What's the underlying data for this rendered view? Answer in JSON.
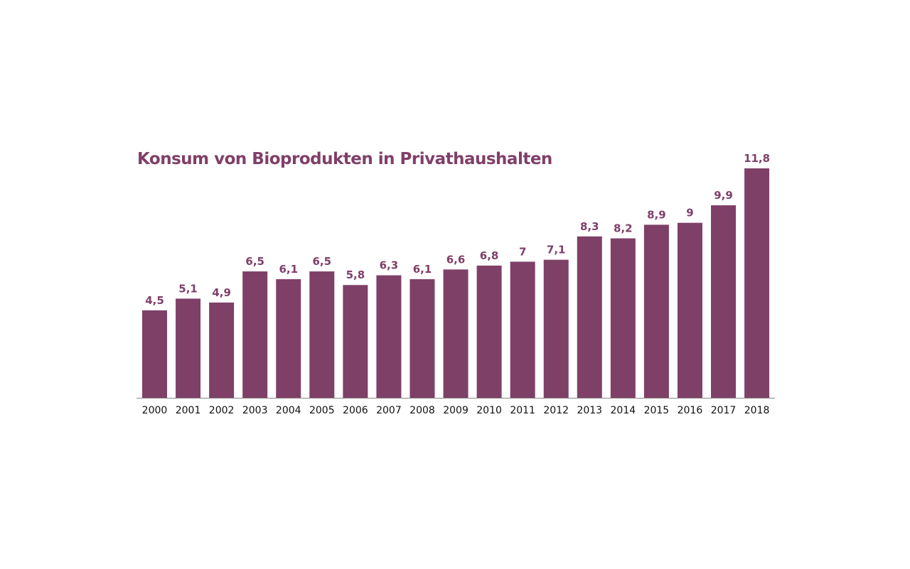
{
  "chart_data": {
    "type": "bar",
    "title": "Konsum von Bioprodukten in Privathaushalten",
    "categories": [
      "2000",
      "2001",
      "2002",
      "2003",
      "2004",
      "2005",
      "2006",
      "2007",
      "2008",
      "2009",
      "2010",
      "2011",
      "2012",
      "2013",
      "2014",
      "2015",
      "2016",
      "2017",
      "2018"
    ],
    "values": [
      4.5,
      5.1,
      4.9,
      6.5,
      6.1,
      6.5,
      5.8,
      6.3,
      6.1,
      6.6,
      6.8,
      7,
      7.1,
      8.3,
      8.2,
      8.9,
      9,
      9.9,
      11.8
    ],
    "value_labels": [
      "4,5",
      "5,1",
      "4,9",
      "6,5",
      "6,1",
      "6,5",
      "5,8",
      "6,3",
      "6,1",
      "6,6",
      "6,8",
      "7",
      "7,1",
      "8,3",
      "8,2",
      "8,9",
      "9",
      "9,9",
      "11,8"
    ],
    "xlabel": "",
    "ylabel": "",
    "ylim": [
      0,
      11.8
    ],
    "grid": false,
    "bar_color": "#7f4068",
    "label_color": "#7f3f68",
    "axis_color": "#888888"
  }
}
